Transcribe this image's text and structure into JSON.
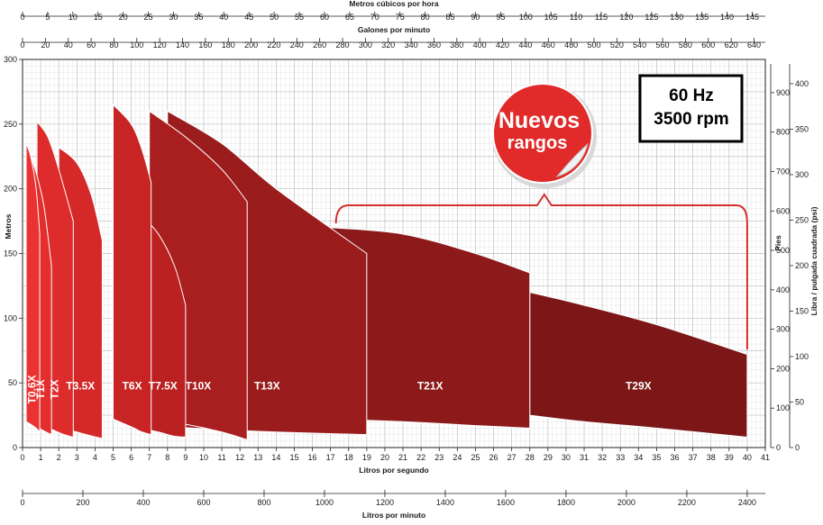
{
  "chart_data": {
    "type": "area",
    "xlabel": "Litros por segundo",
    "ylabel": "Metros",
    "xlim": [
      0,
      41
    ],
    "ylim": [
      0,
      300
    ],
    "x_ticks": [
      0,
      1,
      2,
      3,
      4,
      5,
      6,
      7,
      8,
      9,
      10,
      11,
      12,
      13,
      14,
      15,
      16,
      17,
      18,
      19,
      20,
      21,
      22,
      23,
      24,
      25,
      26,
      27,
      28,
      29,
      30,
      31,
      32,
      33,
      34,
      35,
      36,
      37,
      38,
      39,
      40,
      41
    ],
    "y_ticks": [
      0,
      50,
      100,
      150,
      200,
      250,
      300
    ],
    "top_axes": [
      {
        "title": "Metros cúbicos por hora",
        "ticks": [
          0,
          5,
          10,
          15,
          20,
          25,
          30,
          35,
          40,
          45,
          50,
          55,
          60,
          65,
          70,
          75,
          80,
          85,
          90,
          95,
          100,
          105,
          110,
          115,
          120,
          125,
          130,
          135,
          140,
          145
        ],
        "lps_per_unit": 0.27778
      },
      {
        "title": "Galones por minuto",
        "ticks": [
          0,
          20,
          40,
          60,
          80,
          100,
          120,
          140,
          160,
          180,
          200,
          220,
          240,
          260,
          280,
          300,
          320,
          340,
          360,
          380,
          400,
          420,
          440,
          460,
          480,
          500,
          520,
          540,
          560,
          580,
          600,
          620,
          640
        ],
        "lps_per_unit": 0.06309
      }
    ],
    "bottom_axis2": {
      "title": "Litros por minuto",
      "ticks": [
        0,
        200,
        400,
        600,
        800,
        1000,
        1200,
        1400,
        1600,
        1800,
        2000,
        2200,
        2400
      ],
      "lps_per_unit": 0.016667
    },
    "right_axes": [
      {
        "title": "Pies",
        "ticks": [
          0,
          100,
          200,
          300,
          400,
          500,
          600,
          700,
          800,
          900
        ],
        "m_per_unit": 0.3048
      },
      {
        "title": "Libra / pulgada cuadrada (psi)",
        "ticks": [
          0,
          50,
          100,
          150,
          200,
          250,
          300,
          350,
          400
        ],
        "m_per_unit": 0.7031
      }
    ],
    "series": [
      {
        "name": "T0.6X",
        "color": "#ea3232",
        "upper": [
          [
            0.2,
            235
          ],
          [
            0.45,
            225
          ],
          [
            0.75,
            200
          ],
          [
            0.95,
            165
          ]
        ],
        "lower": [
          [
            0.2,
            20
          ],
          [
            0.45,
            18
          ],
          [
            0.75,
            15
          ],
          [
            0.95,
            12
          ]
        ]
      },
      {
        "name": "T1X",
        "color": "#e42e2e",
        "upper": [
          [
            0.45,
            225
          ],
          [
            0.8,
            210
          ],
          [
            1.2,
            185
          ],
          [
            1.6,
            140
          ]
        ],
        "lower": [
          [
            0.45,
            18
          ],
          [
            0.9,
            15
          ],
          [
            1.3,
            12
          ],
          [
            1.6,
            10
          ]
        ]
      },
      {
        "name": "T2X",
        "color": "#de2b2b",
        "upper": [
          [
            0.8,
            252
          ],
          [
            1.4,
            240
          ],
          [
            2,
            215
          ],
          [
            2.8,
            175
          ]
        ],
        "lower": [
          [
            0.8,
            18
          ],
          [
            1.6,
            14
          ],
          [
            2.3,
            10
          ],
          [
            2.8,
            8
          ]
        ]
      },
      {
        "name": "T3.5X",
        "color": "#d52828",
        "upper": [
          [
            2,
            232
          ],
          [
            3,
            220
          ],
          [
            3.8,
            195
          ],
          [
            4.4,
            160
          ]
        ],
        "lower": [
          [
            2,
            16
          ],
          [
            3,
            12
          ],
          [
            3.8,
            9
          ],
          [
            4.4,
            7
          ]
        ]
      },
      {
        "name": "T6X",
        "color": "#c92424",
        "upper": [
          [
            5,
            265
          ],
          [
            6,
            250
          ],
          [
            6.6,
            230
          ],
          [
            7.1,
            205
          ]
        ],
        "lower": [
          [
            5,
            22
          ],
          [
            6,
            16
          ],
          [
            6.6,
            12
          ],
          [
            7.1,
            10
          ]
        ]
      },
      {
        "name": "T7.5X",
        "color": "#bb2121",
        "upper": [
          [
            6.5,
            180
          ],
          [
            7.5,
            165
          ],
          [
            8.4,
            140
          ],
          [
            9,
            110
          ]
        ],
        "lower": [
          [
            6.5,
            15
          ],
          [
            7.5,
            12
          ],
          [
            8.3,
            9
          ],
          [
            9,
            8
          ]
        ]
      },
      {
        "name": "T10X",
        "color": "#a91e1e",
        "upper": [
          [
            7,
            260
          ],
          [
            9,
            240
          ],
          [
            11,
            215
          ],
          [
            12.4,
            190
          ]
        ],
        "lower": [
          [
            7,
            22
          ],
          [
            9,
            18
          ],
          [
            11,
            12
          ],
          [
            12.4,
            6
          ]
        ]
      },
      {
        "name": "T13X",
        "color": "#9b1c1c",
        "upper": [
          [
            8,
            260
          ],
          [
            11,
            235
          ],
          [
            14,
            200
          ],
          [
            19,
            150
          ]
        ],
        "lower": [
          [
            8,
            16
          ],
          [
            11,
            14
          ],
          [
            14,
            12
          ],
          [
            19,
            10
          ]
        ]
      },
      {
        "name": "T21X",
        "color": "#8d1a1a",
        "upper": [
          [
            17,
            170
          ],
          [
            21,
            165
          ],
          [
            25,
            150
          ],
          [
            28,
            135
          ]
        ],
        "lower": [
          [
            17,
            22
          ],
          [
            21,
            20
          ],
          [
            25,
            17
          ],
          [
            28,
            15
          ]
        ]
      },
      {
        "name": "T29X",
        "color": "#7d1717",
        "upper": [
          [
            28,
            120
          ],
          [
            31,
            110
          ],
          [
            35,
            95
          ],
          [
            40,
            72
          ]
        ],
        "lower": [
          [
            28,
            25
          ],
          [
            31,
            20
          ],
          [
            35,
            15
          ],
          [
            40,
            8
          ]
        ]
      }
    ],
    "frequency": "60 Hz",
    "rpm": "3500 rpm",
    "badge": [
      "Nuevos",
      "rangos"
    ]
  }
}
